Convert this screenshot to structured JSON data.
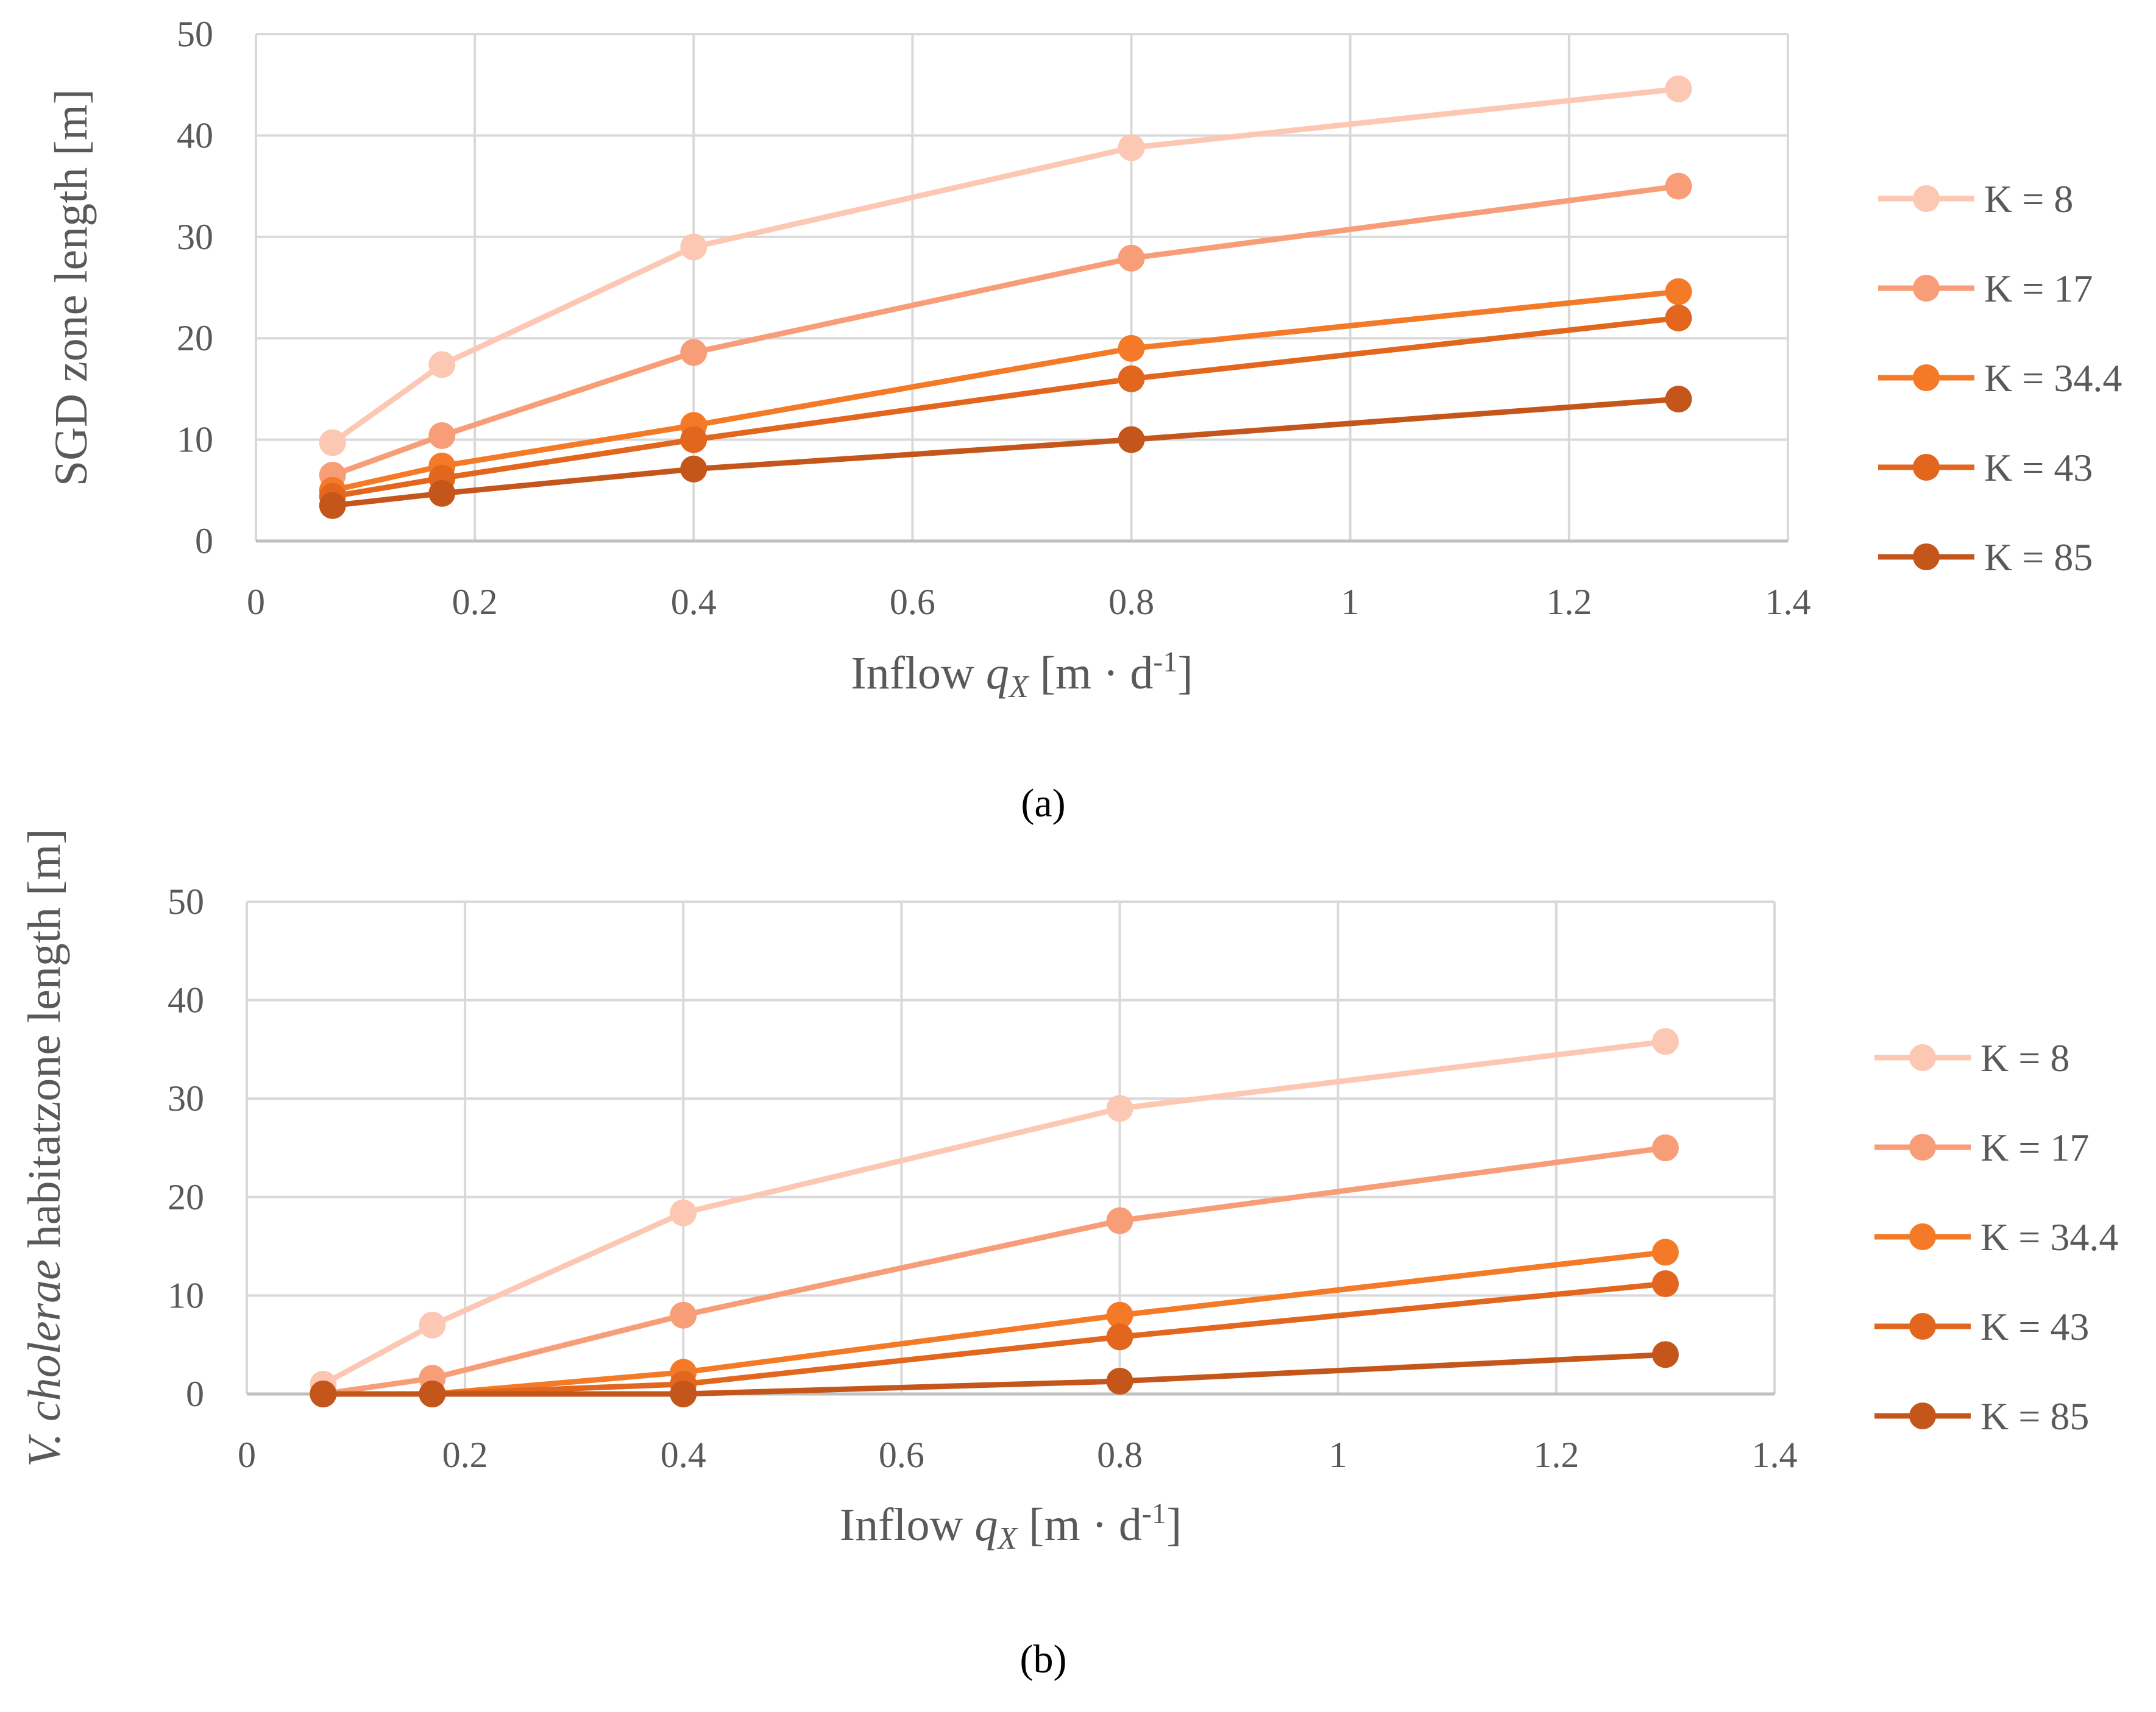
{
  "chart_data": [
    {
      "type": "line",
      "caption": "(a)",
      "x": [
        0.07,
        0.17,
        0.4,
        0.8,
        1.3
      ],
      "series": [
        {
          "name": "K = 8",
          "color": "#FCC7B3",
          "values": [
            9.7,
            17.4,
            29.0,
            38.8,
            44.6
          ]
        },
        {
          "name": "K = 17",
          "color": "#F79E78",
          "values": [
            6.5,
            10.4,
            18.6,
            27.9,
            35.0
          ]
        },
        {
          "name": "K = 34.4",
          "color": "#F47A27",
          "values": [
            5.0,
            7.4,
            11.4,
            19.0,
            24.6
          ]
        },
        {
          "name": "K = 43",
          "color": "#E3661E",
          "values": [
            4.4,
            6.2,
            10.0,
            16.0,
            22.0
          ]
        },
        {
          "name": "K = 85",
          "color": "#C4561B",
          "values": [
            3.5,
            4.7,
            7.1,
            10.0,
            14.0
          ]
        }
      ],
      "xlim": [
        0,
        1.4
      ],
      "ylim": [
        0,
        50
      ],
      "xticks": [
        "0",
        "0.2",
        "0.4",
        "0.6",
        "0.8",
        "1",
        "1.2",
        "1.4"
      ],
      "yticks": [
        "0",
        "10",
        "20",
        "30",
        "40",
        "50"
      ],
      "xlabel": {
        "main": "Inflow ",
        "q": "q",
        "sub": "X",
        "unit": " [m · d",
        "exp": "-1",
        "close": "]"
      },
      "ylabel": "SGD zone length [m]",
      "grid": true,
      "legend": "right"
    },
    {
      "type": "line",
      "caption": "(b)",
      "x": [
        0.07,
        0.17,
        0.4,
        0.8,
        1.3
      ],
      "series": [
        {
          "name": "K = 8",
          "color": "#FCC7B3",
          "values": [
            1.0,
            7.0,
            18.4,
            29.0,
            35.8
          ]
        },
        {
          "name": "K = 17",
          "color": "#F79E78",
          "values": [
            0.0,
            1.6,
            8.0,
            17.6,
            25.0
          ]
        },
        {
          "name": "K = 34.4",
          "color": "#F47A27",
          "values": [
            0.0,
            0.0,
            2.2,
            8.0,
            14.4
          ]
        },
        {
          "name": "K = 43",
          "color": "#E3661E",
          "values": [
            0.0,
            0.0,
            1.0,
            5.8,
            11.2
          ]
        },
        {
          "name": "K = 85",
          "color": "#C4561B",
          "values": [
            0.0,
            0.0,
            0.0,
            1.3,
            4.0
          ]
        }
      ],
      "xlim": [
        0,
        1.4
      ],
      "ylim": [
        0,
        50
      ],
      "xticks": [
        "0",
        "0.2",
        "0.4",
        "0.6",
        "0.8",
        "1",
        "1.2",
        "1.4"
      ],
      "yticks": [
        "0",
        "10",
        "20",
        "30",
        "40",
        "50"
      ],
      "xlabel": {
        "main": "Inflow ",
        "q": "q",
        "sub": "X",
        "unit": " [m · d",
        "exp": "-1",
        "close": "]"
      },
      "ylabel_lines": [
        {
          "italic": "V. cholerae",
          "rest": " habitat"
        },
        {
          "italic": "",
          "rest": "zone length [m]"
        }
      ],
      "grid": true,
      "legend": "right"
    }
  ]
}
